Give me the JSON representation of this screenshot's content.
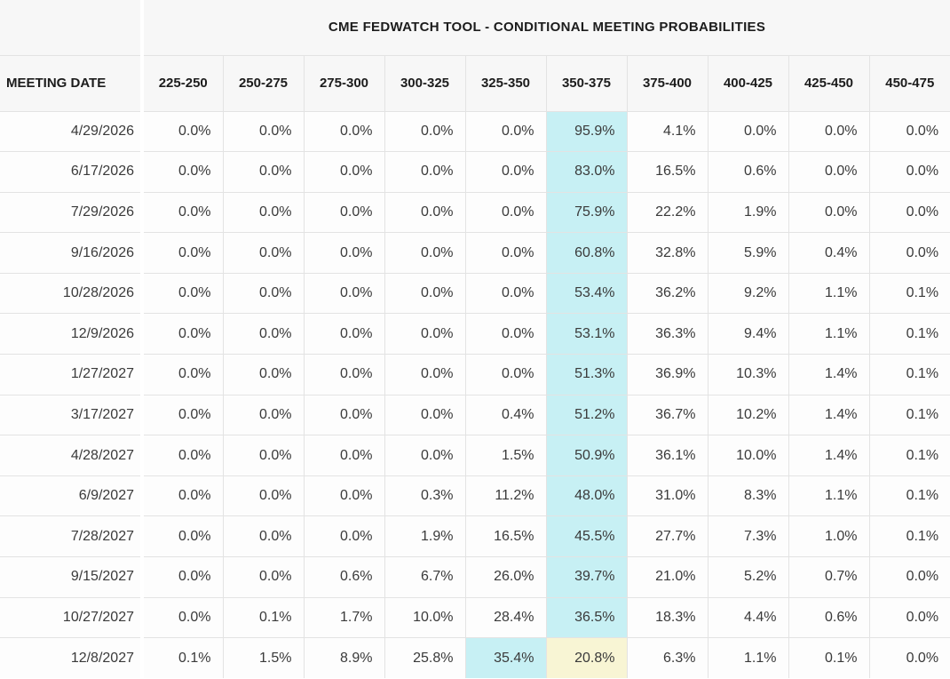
{
  "title": "CME FEDWATCH TOOL - CONDITIONAL MEETING PROBABILITIES",
  "table": {
    "date_column_header": "MEETING DATE",
    "rate_columns": [
      "225-250",
      "250-275",
      "275-300",
      "300-325",
      "325-350",
      "350-375",
      "375-400",
      "400-425",
      "425-450",
      "450-475"
    ],
    "rows": [
      {
        "date": "4/29/2026",
        "values": [
          "0.0%",
          "0.0%",
          "0.0%",
          "0.0%",
          "0.0%",
          "95.9%",
          "4.1%",
          "0.0%",
          "0.0%",
          "0.0%"
        ],
        "cyan_col": 5
      },
      {
        "date": "6/17/2026",
        "values": [
          "0.0%",
          "0.0%",
          "0.0%",
          "0.0%",
          "0.0%",
          "83.0%",
          "16.5%",
          "0.6%",
          "0.0%",
          "0.0%"
        ],
        "cyan_col": 5
      },
      {
        "date": "7/29/2026",
        "values": [
          "0.0%",
          "0.0%",
          "0.0%",
          "0.0%",
          "0.0%",
          "75.9%",
          "22.2%",
          "1.9%",
          "0.0%",
          "0.0%"
        ],
        "cyan_col": 5
      },
      {
        "date": "9/16/2026",
        "values": [
          "0.0%",
          "0.0%",
          "0.0%",
          "0.0%",
          "0.0%",
          "60.8%",
          "32.8%",
          "5.9%",
          "0.4%",
          "0.0%"
        ],
        "cyan_col": 5
      },
      {
        "date": "10/28/2026",
        "values": [
          "0.0%",
          "0.0%",
          "0.0%",
          "0.0%",
          "0.0%",
          "53.4%",
          "36.2%",
          "9.2%",
          "1.1%",
          "0.1%"
        ],
        "cyan_col": 5
      },
      {
        "date": "12/9/2026",
        "values": [
          "0.0%",
          "0.0%",
          "0.0%",
          "0.0%",
          "0.0%",
          "53.1%",
          "36.3%",
          "9.4%",
          "1.1%",
          "0.1%"
        ],
        "cyan_col": 5
      },
      {
        "date": "1/27/2027",
        "values": [
          "0.0%",
          "0.0%",
          "0.0%",
          "0.0%",
          "0.0%",
          "51.3%",
          "36.9%",
          "10.3%",
          "1.4%",
          "0.1%"
        ],
        "cyan_col": 5
      },
      {
        "date": "3/17/2027",
        "values": [
          "0.0%",
          "0.0%",
          "0.0%",
          "0.0%",
          "0.4%",
          "51.2%",
          "36.7%",
          "10.2%",
          "1.4%",
          "0.1%"
        ],
        "cyan_col": 5
      },
      {
        "date": "4/28/2027",
        "values": [
          "0.0%",
          "0.0%",
          "0.0%",
          "0.0%",
          "1.5%",
          "50.9%",
          "36.1%",
          "10.0%",
          "1.4%",
          "0.1%"
        ],
        "cyan_col": 5
      },
      {
        "date": "6/9/2027",
        "values": [
          "0.0%",
          "0.0%",
          "0.0%",
          "0.3%",
          "11.2%",
          "48.0%",
          "31.0%",
          "8.3%",
          "1.1%",
          "0.1%"
        ],
        "cyan_col": 5
      },
      {
        "date": "7/28/2027",
        "values": [
          "0.0%",
          "0.0%",
          "0.0%",
          "1.9%",
          "16.5%",
          "45.5%",
          "27.7%",
          "7.3%",
          "1.0%",
          "0.1%"
        ],
        "cyan_col": 5
      },
      {
        "date": "9/15/2027",
        "values": [
          "0.0%",
          "0.0%",
          "0.6%",
          "6.7%",
          "26.0%",
          "39.7%",
          "21.0%",
          "5.2%",
          "0.7%",
          "0.0%"
        ],
        "cyan_col": 5
      },
      {
        "date": "10/27/2027",
        "values": [
          "0.0%",
          "0.1%",
          "1.7%",
          "10.0%",
          "28.4%",
          "36.5%",
          "18.3%",
          "4.4%",
          "0.6%",
          "0.0%"
        ],
        "cyan_col": 5
      },
      {
        "date": "12/8/2027",
        "values": [
          "0.1%",
          "1.5%",
          "8.9%",
          "25.8%",
          "35.4%",
          "20.8%",
          "6.3%",
          "1.1%",
          "0.1%",
          "0.0%"
        ],
        "cyan_col": 4,
        "yellow_col": 5
      }
    ]
  },
  "colors": {
    "header_bg": "#f7f7f7",
    "row_bg": "#fdfdfd",
    "border": "#e3e3e3",
    "highlight_cyan": "#c7f0f4",
    "highlight_yellow": "#f8f5d4",
    "text_dark": "#1c1c1c",
    "text_data": "#3a3a3a"
  }
}
